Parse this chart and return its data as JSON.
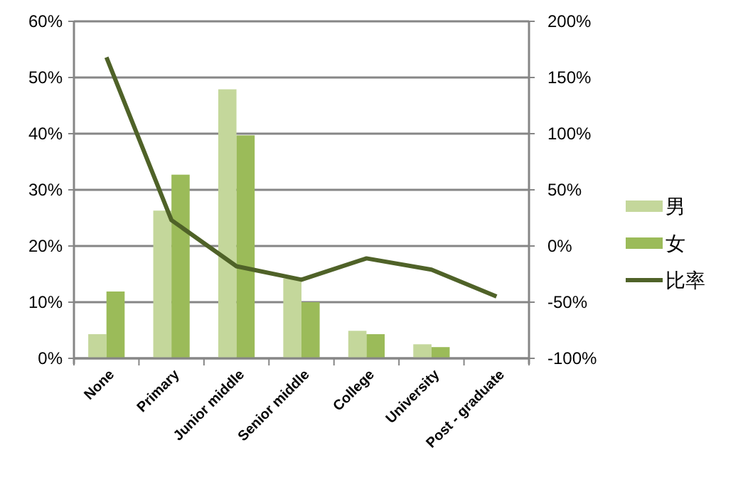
{
  "chart_data": {
    "type": "bar",
    "categories": [
      "None",
      "Primary",
      "Junior middle",
      "Senior middle",
      "College",
      "University",
      "Post - graduate"
    ],
    "series": [
      {
        "name": "男",
        "color": "#c4d79b",
        "values": [
          4.3,
          26.3,
          47.9,
          14.2,
          4.9,
          2.5,
          null
        ]
      },
      {
        "name": "女",
        "color": "#9bbb59",
        "values": [
          11.9,
          32.7,
          39.7,
          10,
          4.3,
          2,
          null
        ]
      },
      {
        "name": "比率",
        "type": "line",
        "axis": "y2",
        "color": "#4f6228",
        "values": [
          168,
          23,
          -18,
          -30,
          -11,
          -21,
          -45
        ]
      }
    ],
    "ylim": [
      0,
      60
    ],
    "yticks": [
      {
        "value": 0,
        "label": "0%"
      },
      {
        "value": 10,
        "label": "10%"
      },
      {
        "value": 20,
        "label": "20%"
      },
      {
        "value": 30,
        "label": "30%"
      },
      {
        "value": 40,
        "label": "40%"
      },
      {
        "value": 50,
        "label": "50%"
      },
      {
        "value": 60,
        "label": "60%"
      }
    ],
    "y2lim": [
      -100,
      200
    ],
    "y2ticks": [
      {
        "value": -100,
        "label": "-100%"
      },
      {
        "value": -50,
        "label": "-50%"
      },
      {
        "value": 0,
        "label": "0%"
      },
      {
        "value": 50,
        "label": "50%"
      },
      {
        "value": 100,
        "label": "100%"
      },
      {
        "value": 150,
        "label": "150%"
      },
      {
        "value": 200,
        "label": "200%"
      }
    ],
    "grid": "y",
    "legend": "right",
    "marker": "none",
    "line_style": "solid"
  }
}
